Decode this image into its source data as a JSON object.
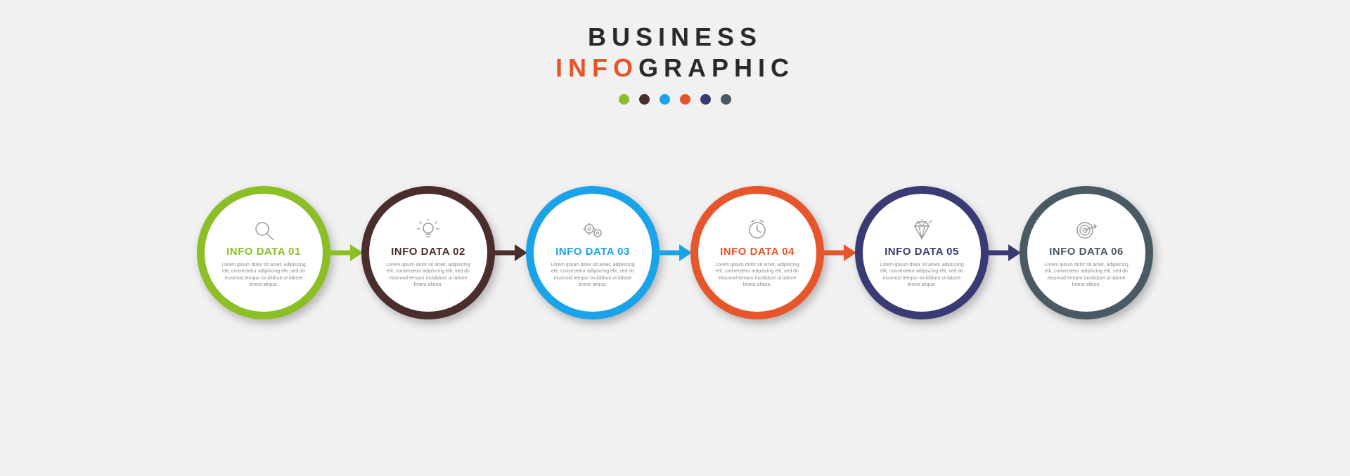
{
  "header": {
    "line1": "BUSINESS",
    "line2_accent": "INFO",
    "line2_rest": "GRAPHIC",
    "accent_color": "#e7552c",
    "title_fontsize": 36,
    "letter_spacing": 8
  },
  "dots": [
    {
      "color": "#8cbf26"
    },
    {
      "color": "#4a2e2b"
    },
    {
      "color": "#1aa3e8"
    },
    {
      "color": "#e7552c"
    },
    {
      "color": "#3a3a74"
    },
    {
      "color": "#4a5a64"
    }
  ],
  "layout": {
    "background_color": "#f1f1f1",
    "ring_diameter": 190,
    "ring_thickness": 11,
    "inner_bg": "#ffffff",
    "icon_color": "#9a9a9a",
    "body_color": "#8a8a8a",
    "arrow_width": 48,
    "arrow_thickness": 7,
    "arrow_head": 18,
    "shadow": "4px 6px 6px rgba(0,0,0,0.25)"
  },
  "steps": [
    {
      "color": "#8cbf26",
      "icon": "magnifier",
      "title": "INFO DATA 01",
      "body": "Lorem ipsum dolor sit amet, adipiscing elit, consectetur adipiscing elit, sed do eiusmod tempor incididunt ut labore brana aliqua."
    },
    {
      "color": "#4a2e2b",
      "icon": "lightbulb",
      "title": "INFO DATA 02",
      "body": "Lorem ipsum dolor sit amet, adipiscing elit, consectetur adipiscing elit, sed do eiusmod tempor incididunt ut labore brana aliqua."
    },
    {
      "color": "#1aa3e8",
      "icon": "gears",
      "title": "INFO DATA 03",
      "body": "Lorem ipsum dolor sit amet, adipiscing elit, consectetur adipiscing elit, sed do eiusmod tempor incididunt ut labore brana aliqua."
    },
    {
      "color": "#e7552c",
      "icon": "clock",
      "title": "INFO DATA 04",
      "body": "Lorem ipsum dolor sit amet, adipiscing elit, consectetur adipiscing elit, sed do eiusmod tempor incididunt ut labore brana aliqua."
    },
    {
      "color": "#3a3a74",
      "icon": "diamond",
      "title": "INFO DATA 05",
      "body": "Lorem ipsum dolor sit amet, adipiscing elit, consectetur adipiscing elit, sed do eiusmod tempor incididunt ut labore brana aliqua."
    },
    {
      "color": "#4a5a64",
      "icon": "target",
      "title": "INFO DATA 06",
      "body": "Lorem ipsum dolor sit amet, adipiscing elit, consectetur adipiscing elit, sed do eiusmod tempor incididunt ut labore brana aliqua."
    }
  ]
}
